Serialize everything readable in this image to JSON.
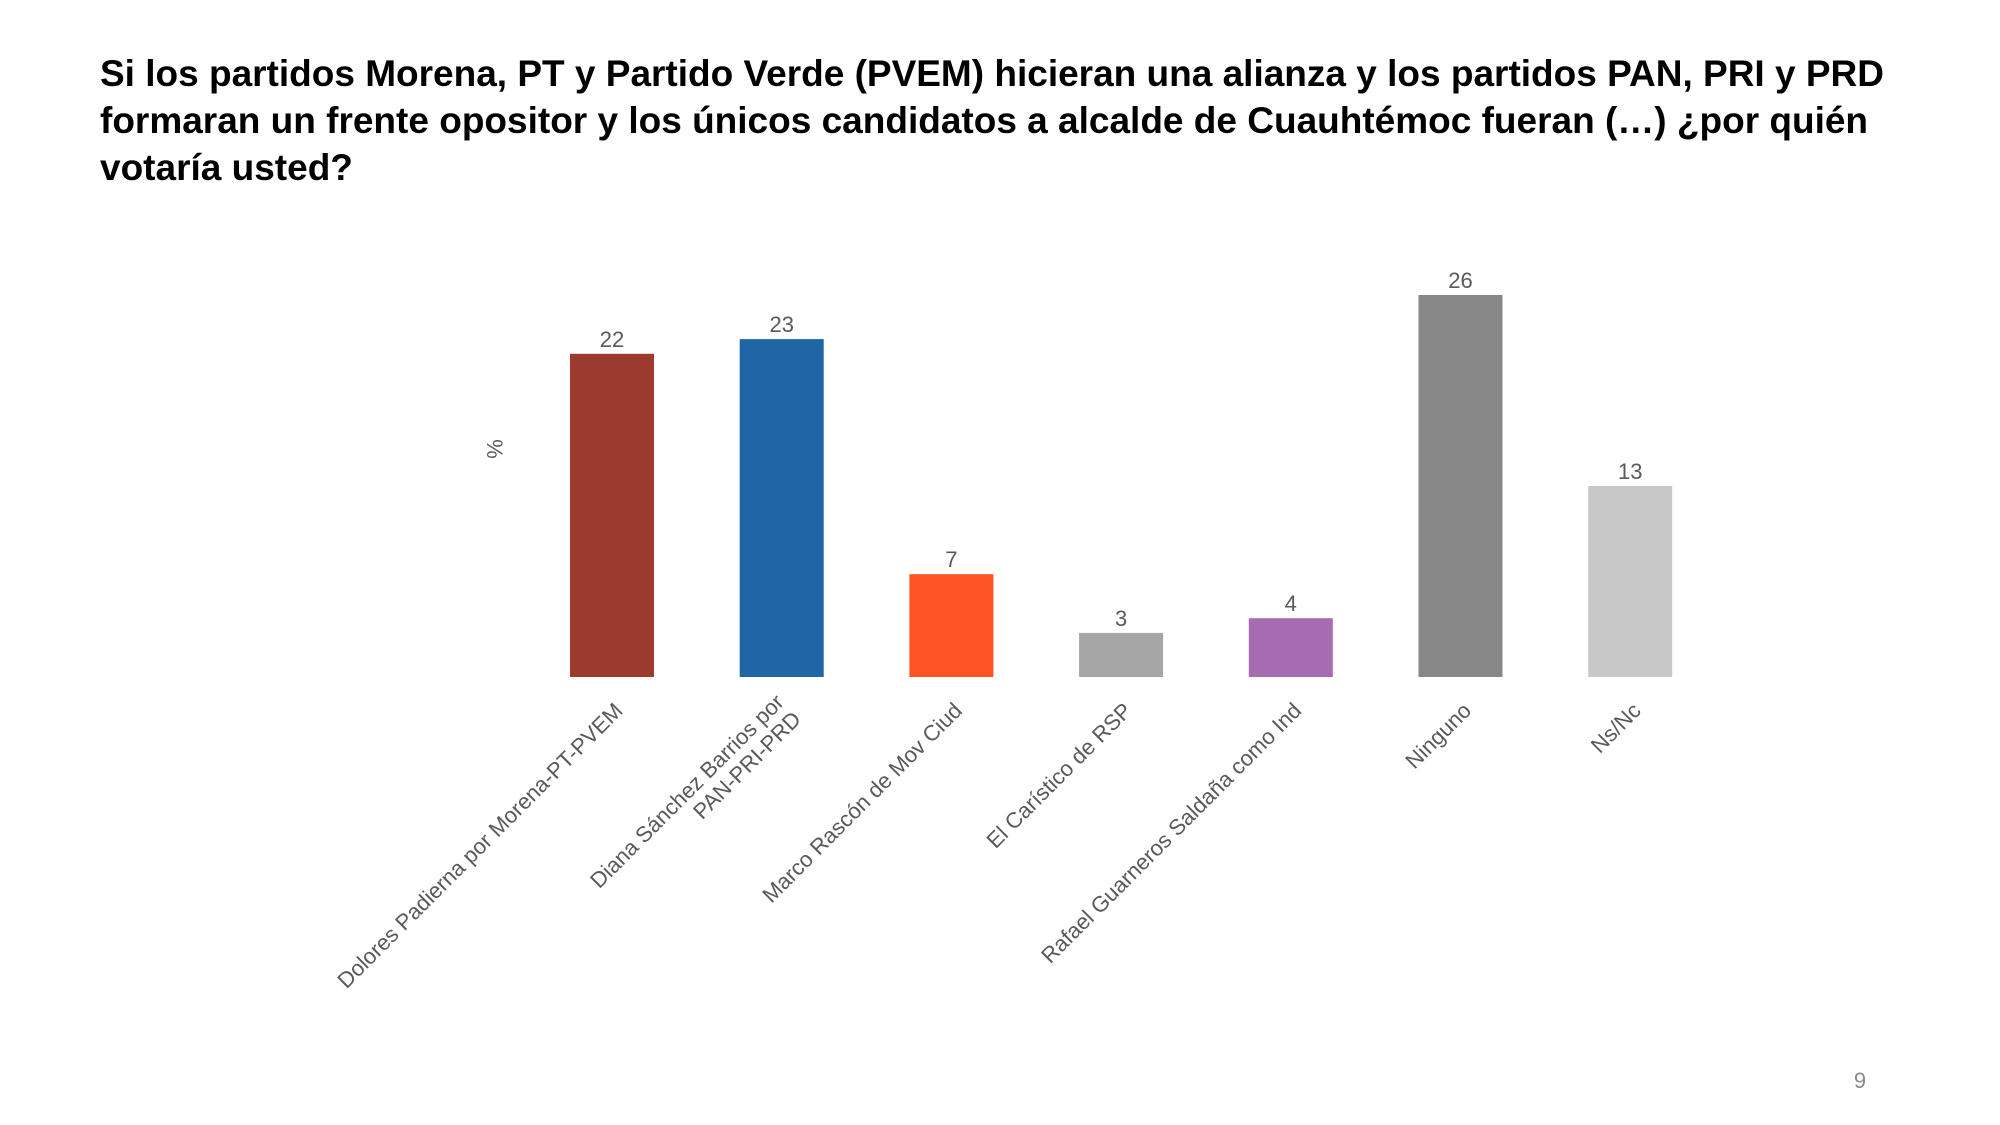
{
  "slide": {
    "title": "Si los partidos Morena, PT y Partido Verde (PVEM) hicieran una alianza y los partidos PAN, PRI y PRD formaran un frente opositor y los únicos candidatos a alcalde de Cuauhtémoc fueran (…) ¿por quién votaría usted?",
    "page_number": "9"
  },
  "chart_data": {
    "type": "bar",
    "title": "",
    "xlabel": "",
    "ylabel": "%",
    "ylim": [
      0,
      26
    ],
    "grid": false,
    "legend": "none",
    "categories": [
      [
        "Dolores Padierna por Morena-PT-PVEM"
      ],
      [
        "Diana Sánchez Barrios por",
        "PAN-PRI-PRD"
      ],
      [
        "Marco Rascón de Mov Ciud"
      ],
      [
        "El Carístico de RSP"
      ],
      [
        "Rafael Guarneros Saldaña como Ind"
      ],
      [
        "Ninguno"
      ],
      [
        "Ns/Nc"
      ]
    ],
    "values": [
      22,
      23,
      7,
      3,
      4,
      26,
      13
    ],
    "colors": [
      "#9b3a2d",
      "#1e66a6",
      "#fd5423",
      "#a6a6a6",
      "#a66bb0",
      "#878787",
      "#c8c8c8"
    ],
    "value_label_color": "#595959",
    "axis_label_color": "#595959"
  }
}
